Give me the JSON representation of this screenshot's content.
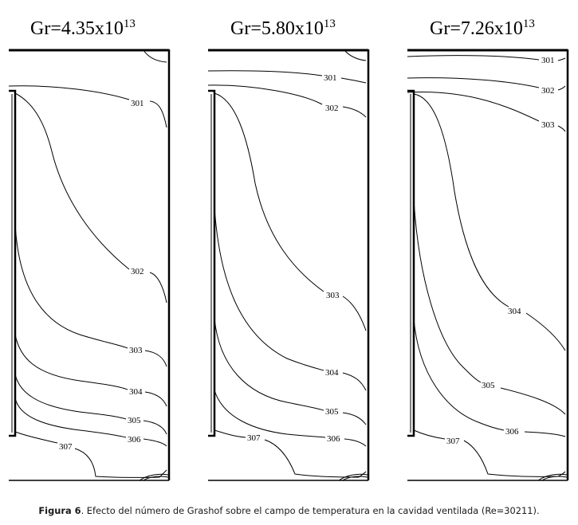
{
  "panels": [
    {
      "title_prefix": "Gr=4.35x10",
      "title_exp": "13",
      "isotherm_labels": [
        "301",
        "302",
        "303",
        "304",
        "305",
        "306",
        "307"
      ]
    },
    {
      "title_prefix": "Gr=5.80x10",
      "title_exp": "13",
      "isotherm_labels": [
        "301",
        "302",
        "303",
        "304",
        "305",
        "306",
        "307"
      ]
    },
    {
      "title_prefix": "Gr=7.26x10",
      "title_exp": "13",
      "isotherm_labels": [
        "301",
        "302",
        "303",
        "304",
        "305",
        "306",
        "307"
      ]
    }
  ],
  "caption": {
    "label": "Figura 6",
    "text": ". Efecto del número de Grashof sobre el campo de temperatura en la cavidad ventilada (Re=30211)."
  }
}
